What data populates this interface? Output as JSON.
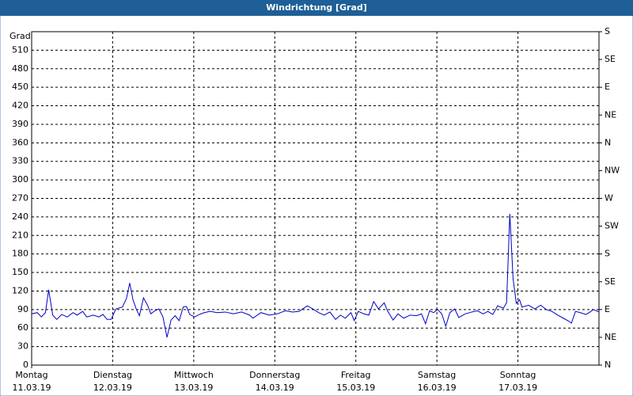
{
  "chart_data": {
    "type": "line",
    "title": "Windrichtung [Grad]",
    "y_label": "Grad",
    "ylim": [
      0,
      540
    ],
    "yticks": [
      0,
      30,
      60,
      90,
      120,
      150,
      180,
      210,
      240,
      270,
      300,
      330,
      360,
      390,
      420,
      450,
      480,
      510
    ],
    "y2lim": [
      0,
      540
    ],
    "y2ticks": [
      {
        "value": 0,
        "label": "N"
      },
      {
        "value": 45,
        "label": "NE"
      },
      {
        "value": 90,
        "label": "E"
      },
      {
        "value": 135,
        "label": "SE"
      },
      {
        "value": 180,
        "label": "S"
      },
      {
        "value": 225,
        "label": "SW"
      },
      {
        "value": 270,
        "label": "W"
      },
      {
        "value": 315,
        "label": "NW"
      },
      {
        "value": 360,
        "label": "N"
      },
      {
        "value": 405,
        "label": "NE"
      },
      {
        "value": 450,
        "label": "E"
      },
      {
        "value": 495,
        "label": "SE"
      },
      {
        "value": 540,
        "label": "S"
      }
    ],
    "xlim": [
      0,
      7
    ],
    "xticks": [
      {
        "value": 0,
        "label": "Montag"
      },
      {
        "value": 1,
        "label": "Dienstag"
      },
      {
        "value": 2,
        "label": "Mittwoch"
      },
      {
        "value": 3,
        "label": "Donnerstag"
      },
      {
        "value": 4,
        "label": "Freitag"
      },
      {
        "value": 5,
        "label": "Samstag"
      },
      {
        "value": 6,
        "label": "Sonntag"
      }
    ],
    "xtick_dates": [
      "11.03.19",
      "12.03.19",
      "13.03.19",
      "14.03.19",
      "15.03.19",
      "16.03.19",
      "17.03.19"
    ],
    "grid": true,
    "series": [
      {
        "color": "#0000c8",
        "x": [
          0,
          0.07,
          0.12,
          0.17,
          0.21,
          0.26,
          0.31,
          0.37,
          0.44,
          0.51,
          0.56,
          0.63,
          0.68,
          0.76,
          0.83,
          0.88,
          0.93,
          0.98,
          1.04,
          1.12,
          1.17,
          1.21,
          1.25,
          1.29,
          1.33,
          1.38,
          1.43,
          1.47,
          1.52,
          1.57,
          1.62,
          1.67,
          1.72,
          1.77,
          1.82,
          1.87,
          1.91,
          1.95,
          2.01,
          2.07,
          2.13,
          2.2,
          2.29,
          2.39,
          2.49,
          2.59,
          2.69,
          2.73,
          2.83,
          2.93,
          3.03,
          3.13,
          3.22,
          3.3,
          3.4,
          3.47,
          3.54,
          3.61,
          3.68,
          3.75,
          3.81,
          3.87,
          3.94,
          3.98,
          4.03,
          4.1,
          4.16,
          4.22,
          4.28,
          4.35,
          4.39,
          4.46,
          4.52,
          4.59,
          4.67,
          4.75,
          4.81,
          4.86,
          4.91,
          4.96,
          5.01,
          5.06,
          5.11,
          5.16,
          5.22,
          5.27,
          5.35,
          5.43,
          5.5,
          5.57,
          5.63,
          5.69,
          5.75,
          5.82,
          5.86,
          5.9,
          5.94,
          5.98,
          6.02,
          6.05,
          6.13,
          6.21,
          6.28,
          6.35,
          6.42,
          6.49,
          6.56,
          6.63,
          6.66,
          6.71,
          6.77,
          6.84,
          6.89,
          6.93,
          7.0
        ],
        "values": [
          83,
          85,
          78,
          85,
          122,
          81,
          74,
          82,
          78,
          85,
          81,
          87,
          78,
          81,
          78,
          82,
          74,
          74,
          91,
          94,
          108,
          133,
          106,
          91,
          80,
          109,
          97,
          83,
          88,
          91,
          78,
          45,
          73,
          80,
          72,
          94,
          95,
          82,
          78,
          82,
          85,
          87,
          85,
          86,
          83,
          86,
          81,
          76,
          85,
          81,
          83,
          88,
          86,
          87,
          96,
          91,
          85,
          81,
          86,
          74,
          81,
          76,
          85,
          72,
          87,
          83,
          81,
          103,
          91,
          101,
          88,
          73,
          83,
          76,
          81,
          80,
          83,
          67,
          88,
          85,
          90,
          83,
          63,
          85,
          91,
          77,
          83,
          86,
          88,
          83,
          87,
          82,
          96,
          92,
          101,
          245,
          140,
          100,
          106,
          94,
          97,
          91,
          97,
          90,
          87,
          81,
          76,
          71,
          68,
          87,
          85,
          82,
          86,
          90,
          86
        ]
      }
    ]
  }
}
